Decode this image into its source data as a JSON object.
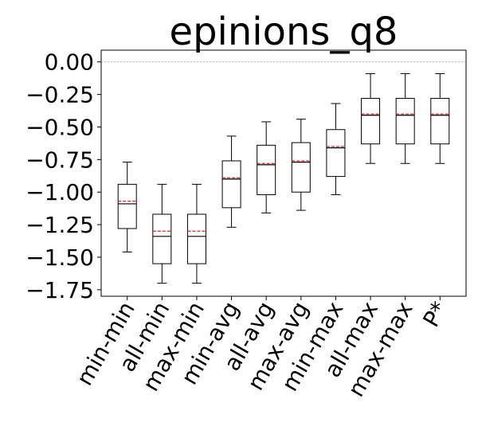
{
  "chart_data": {
    "type": "box",
    "title": "epinions_q8",
    "xlabel": "",
    "ylabel": "",
    "ylim": [
      -1.8,
      0.09
    ],
    "yticks": [
      0.0,
      -0.25,
      -0.5,
      -0.75,
      -1.0,
      -1.25,
      -1.5,
      -1.75
    ],
    "ytick_labels": [
      "0.00",
      "−0.25",
      "−0.50",
      "−0.75",
      "−1.00",
      "−1.25",
      "−1.50",
      "−1.75"
    ],
    "reference_line": 0.0,
    "categories": [
      "min-min",
      "all-min",
      "max-min",
      "min-avg",
      "all-avg",
      "max-avg",
      "min-max",
      "all-max",
      "max-max",
      "P*"
    ],
    "boxes": [
      {
        "whisker_low": -1.46,
        "q1": -1.28,
        "median": -1.09,
        "q3": -0.94,
        "whisker_high": -0.77,
        "mean": -1.07
      },
      {
        "whisker_low": -1.7,
        "q1": -1.55,
        "median": -1.34,
        "q3": -1.17,
        "whisker_high": -0.94,
        "mean": -1.3
      },
      {
        "whisker_low": -1.7,
        "q1": -1.55,
        "median": -1.34,
        "q3": -1.17,
        "whisker_high": -0.94,
        "mean": -1.3
      },
      {
        "whisker_low": -1.27,
        "q1": -1.12,
        "median": -0.9,
        "q3": -0.76,
        "whisker_high": -0.57,
        "mean": -0.89
      },
      {
        "whisker_low": -1.16,
        "q1": -1.02,
        "median": -0.79,
        "q3": -0.64,
        "whisker_high": -0.46,
        "mean": -0.78
      },
      {
        "whisker_low": -1.14,
        "q1": -1.0,
        "median": -0.77,
        "q3": -0.62,
        "whisker_high": -0.44,
        "mean": -0.76
      },
      {
        "whisker_low": -1.02,
        "q1": -0.88,
        "median": -0.66,
        "q3": -0.52,
        "whisker_high": -0.32,
        "mean": -0.65
      },
      {
        "whisker_low": -0.78,
        "q1": -0.63,
        "median": -0.41,
        "q3": -0.28,
        "whisker_high": -0.09,
        "mean": -0.4
      },
      {
        "whisker_low": -0.78,
        "q1": -0.63,
        "median": -0.41,
        "q3": -0.28,
        "whisker_high": -0.09,
        "mean": -0.4
      },
      {
        "whisker_low": -0.78,
        "q1": -0.63,
        "median": -0.41,
        "q3": -0.28,
        "whisker_high": -0.09,
        "mean": -0.4
      }
    ],
    "colors": {
      "box": "#000000",
      "median": "#000000",
      "mean": "#d62728",
      "reference_line": "#999999"
    },
    "grid": false,
    "legend": "none"
  }
}
